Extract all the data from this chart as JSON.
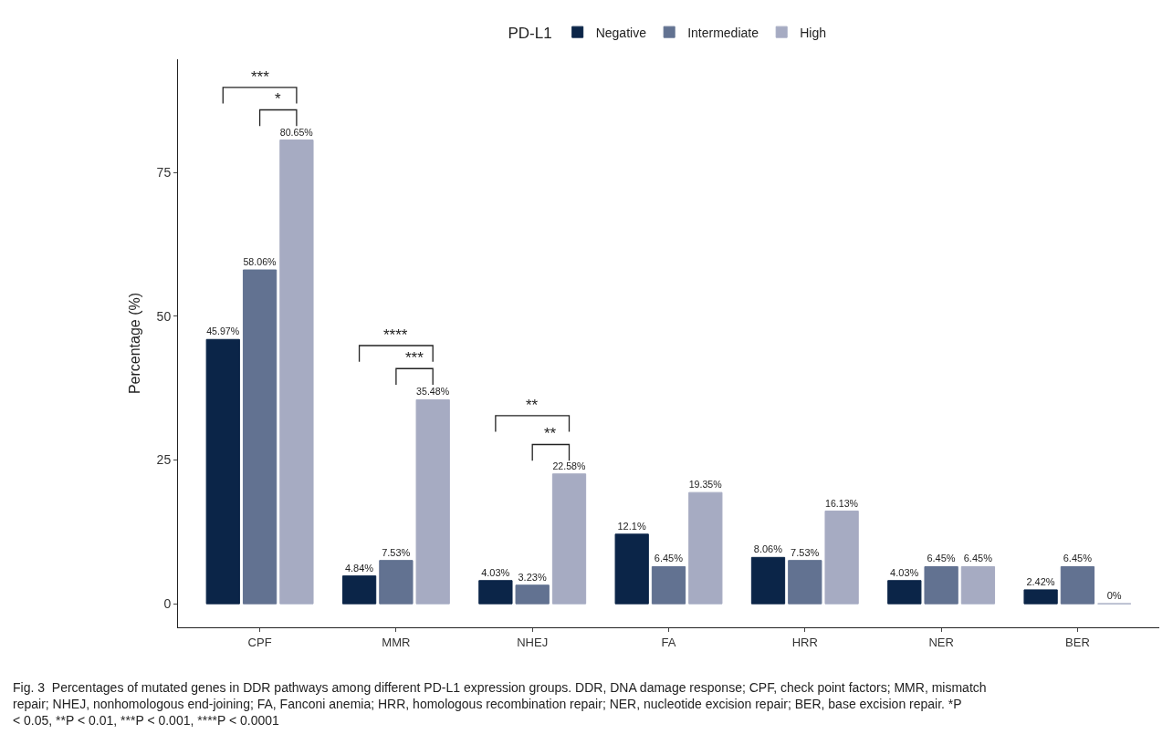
{
  "chart_data": {
    "type": "bar",
    "ylabel": "Percentage (%)",
    "legend_title": "PD-L1",
    "legend": "top",
    "categories": [
      "CPF",
      "MMR",
      "NHEJ",
      "FA",
      "HRR",
      "NER",
      "BER"
    ],
    "series": [
      {
        "name": "Negative",
        "color": "#0b2548",
        "values": [
          45.97,
          4.84,
          4.03,
          12.1,
          8.06,
          4.03,
          2.42
        ],
        "value_labels": [
          "45.97%",
          "4.84%",
          "4.03%",
          "12.1%",
          "8.06%",
          "4.03%",
          "2.42%"
        ]
      },
      {
        "name": "Intermediate",
        "color": "#627291",
        "values": [
          58.06,
          7.53,
          3.23,
          6.45,
          7.53,
          6.45,
          6.45
        ],
        "value_labels": [
          "58.06%",
          "7.53%",
          "3.23%",
          "6.45%",
          "7.53%",
          "6.45%",
          "6.45%"
        ]
      },
      {
        "name": "High",
        "color": "#a6abc2",
        "values": [
          80.65,
          35.48,
          22.58,
          19.35,
          16.13,
          6.45,
          0
        ],
        "value_labels": [
          "80.65%",
          "35.48%",
          "22.58%",
          "19.35%",
          "16.13%",
          "6.45%",
          "0%"
        ]
      }
    ],
    "ylim": [
      -4.1,
      94.7
    ],
    "yticks": [
      0,
      25,
      50,
      75
    ],
    "annotations": [
      "***",
      "*",
      "****",
      "***",
      "**",
      "**",
      "Fig. 3  Percentages of mutated genes in DDR pathways among different PD-L1 expression groups. DDR, DNA damage response; CPF, check point factors; MMR, mismatch repair; NHEJ, nonhomologous end-joining; FA, Fanconi anemia; HRR, homologous recombination repair; NER, nucleotide excision repair; BER, base excision repair. *P < 0.05, **P < 0.01, ***P < 0.001, ****P < 0.0001"
    ]
  }
}
